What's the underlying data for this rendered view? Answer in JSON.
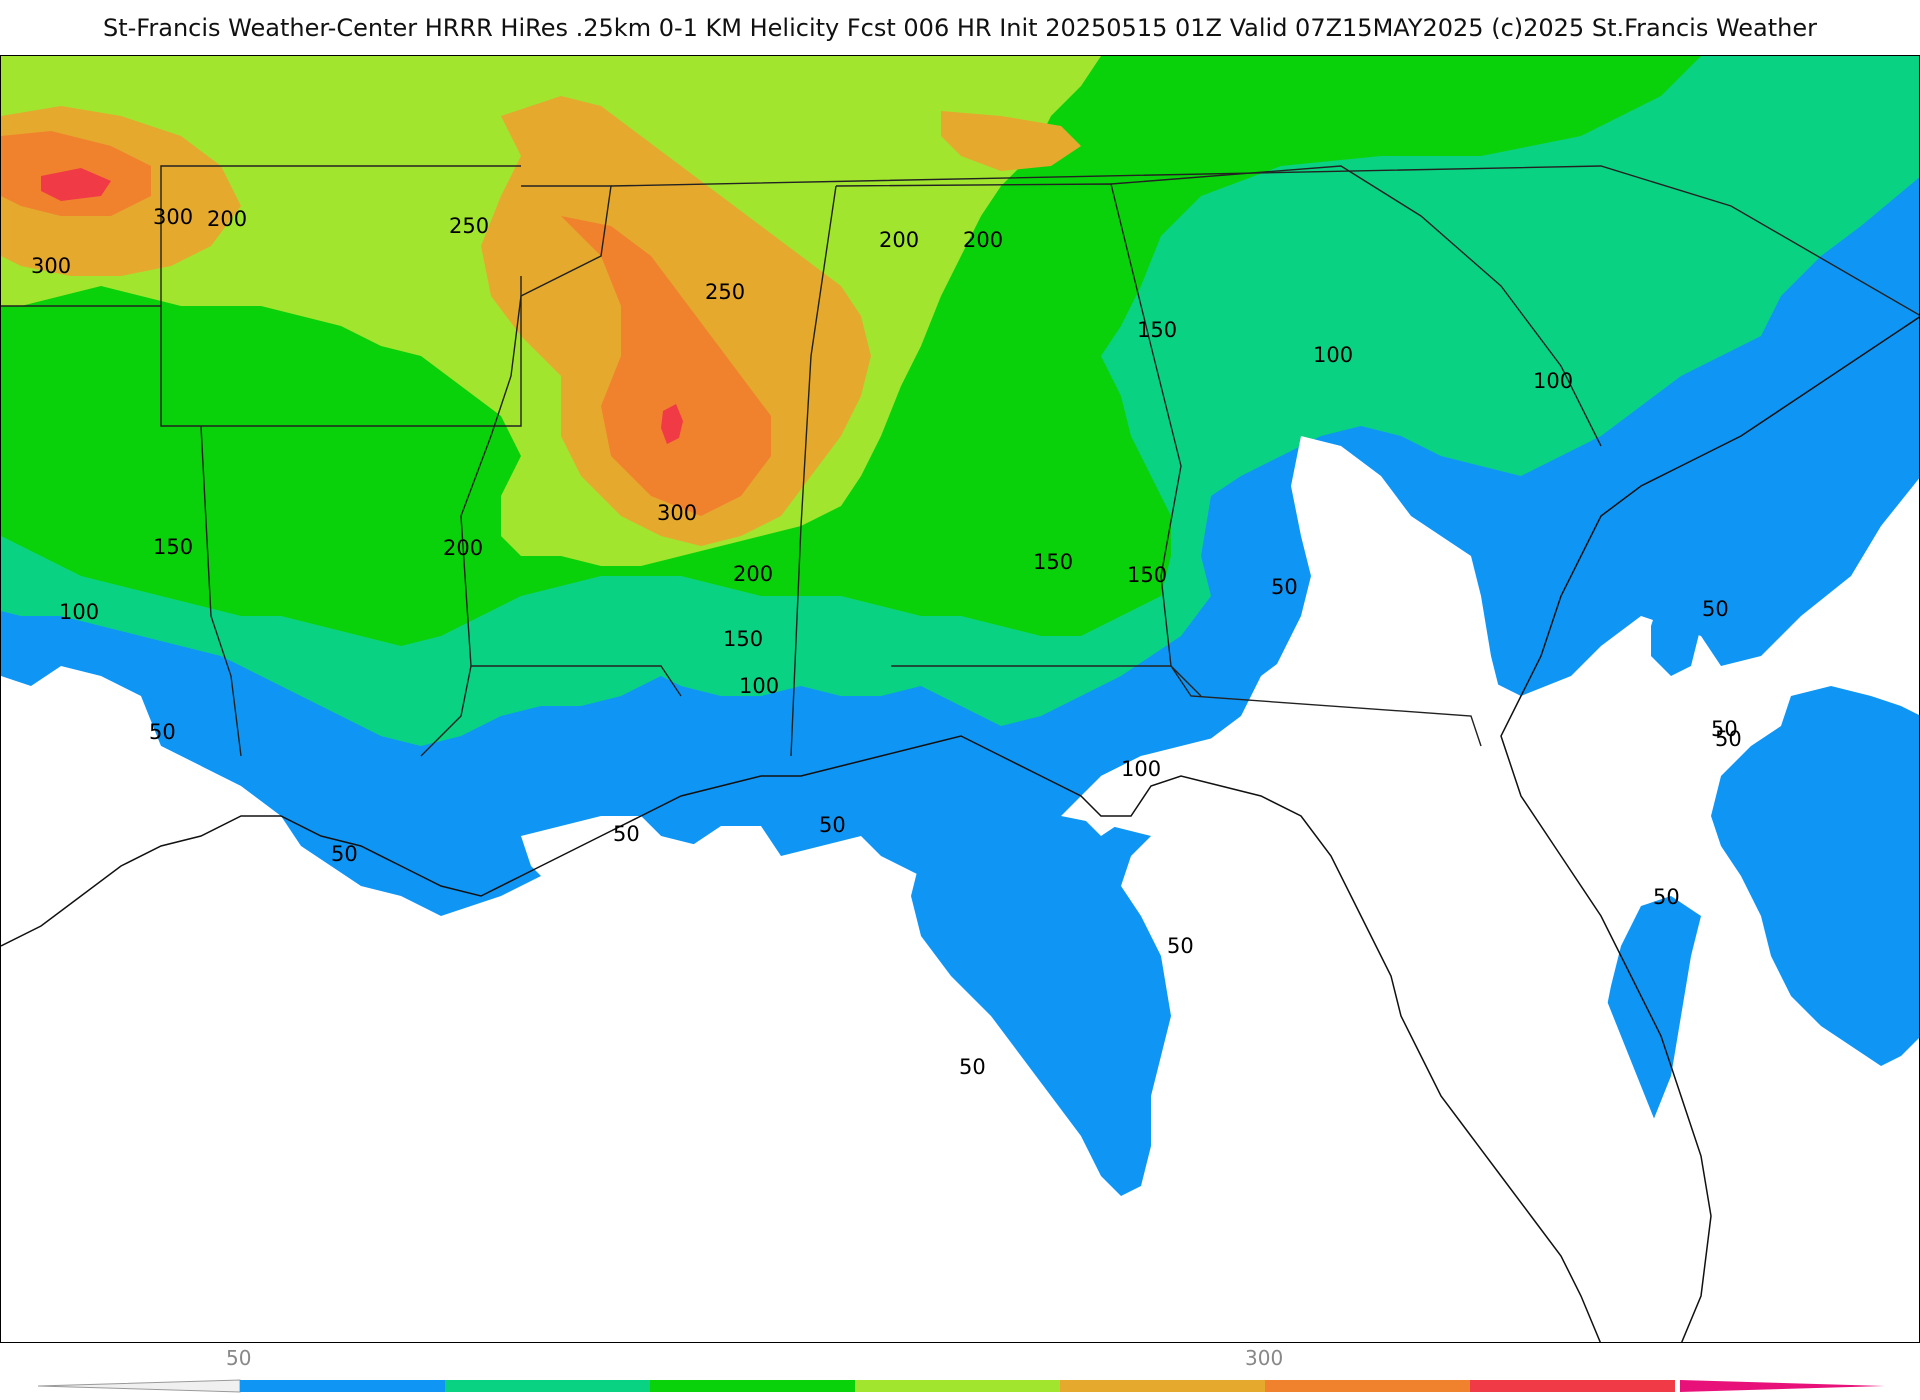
{
  "header": {
    "title": "St-Francis Weather-Center HRRR HiRes .25km 0-1 KM Helicity Fcst 006 HR Init 20250515 01Z  Valid 07Z15MAY2025    (c)2025 St.Francis Weather"
  },
  "legend": {
    "tick_labels": [
      "50",
      "300"
    ],
    "colors": [
      "#0f96f5",
      "#0ad283",
      "#0ad20a",
      "#a2e52e",
      "#e5a92e",
      "#f0822e",
      "#f03a46",
      "#e8117a"
    ]
  },
  "map": {
    "fill_colors": {
      "band_50": "#0f96f5",
      "band_100": "#0ad283",
      "band_150": "#0ad20a",
      "band_200": "#a2e52e",
      "band_250": "#e5a92e",
      "band_300": "#f0822e",
      "band_350": "#f03a46"
    },
    "contour_labels": [
      {
        "text": "300"
      },
      {
        "text": "200"
      },
      {
        "text": "300"
      },
      {
        "text": "250"
      },
      {
        "text": "250"
      },
      {
        "text": "200"
      },
      {
        "text": "200"
      },
      {
        "text": "150"
      },
      {
        "text": "100"
      },
      {
        "text": "100"
      },
      {
        "text": "300"
      },
      {
        "text": "200"
      },
      {
        "text": "150"
      },
      {
        "text": "150"
      },
      {
        "text": "150"
      },
      {
        "text": "200"
      },
      {
        "text": "100"
      },
      {
        "text": "150"
      },
      {
        "text": "50"
      },
      {
        "text": "50"
      },
      {
        "text": "50"
      },
      {
        "text": "100"
      },
      {
        "text": "50"
      },
      {
        "text": "50"
      },
      {
        "text": "50"
      },
      {
        "text": "50"
      },
      {
        "text": "50"
      },
      {
        "text": "50"
      },
      {
        "text": "50"
      },
      {
        "text": "50"
      },
      {
        "text": "100"
      }
    ]
  }
}
